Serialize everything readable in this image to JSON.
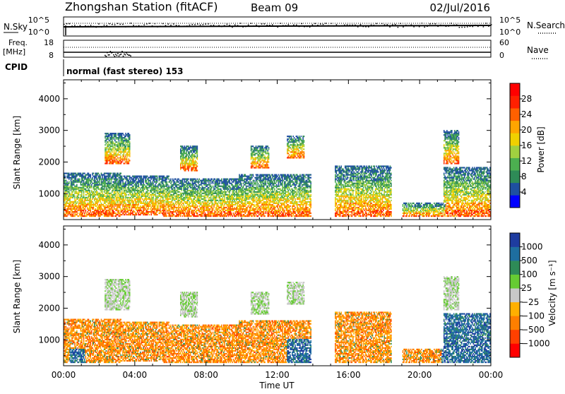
{
  "header": {
    "station": "Zhongshan Station (fitACF)",
    "beam": "Beam 09",
    "date": "02/Jul/2016"
  },
  "sky_panel": {
    "left_label": "N.Sky",
    "left_ticks": [
      "10^5",
      "10^0"
    ],
    "right_label": "N.Search",
    "right_ticks": [
      "10^5",
      "10^0"
    ]
  },
  "freq_panel": {
    "left_label_1": "Freq.",
    "left_label_2": "[MHz]",
    "left_ticks": [
      "18",
      "8"
    ],
    "right_label": "Nave",
    "right_ticks": [
      "60",
      "0"
    ]
  },
  "cpid": {
    "label": "CPID",
    "mode": "normal (fast stereo) 153"
  },
  "colors": {
    "power_scale": [
      "#0000ff",
      "#1e50a0",
      "#2e8b57",
      "#4caf50",
      "#a0d040",
      "#f0d000",
      "#ffa500",
      "#ff6000",
      "#ff2000",
      "#ff0000"
    ],
    "velocity_scale": [
      "#ff0000",
      "#ff4000",
      "#ff7f00",
      "#ffb000",
      "#c8c8c8",
      "#66cc33",
      "#2e8b57",
      "#1e6ea0",
      "#1e3ca0"
    ]
  },
  "chart_data": [
    {
      "type": "heatmap",
      "name": "power",
      "xlabel": "",
      "ylabel": "Slant Range [km]",
      "x_ticks": [
        "00:00",
        "04:00",
        "08:00",
        "12:00",
        "16:00",
        "20:00",
        "00:00"
      ],
      "xlim_hours": [
        0,
        24
      ],
      "ylim": [
        180,
        4600
      ],
      "y_ticks": [
        1000,
        2000,
        3000,
        4000
      ],
      "colorbar": {
        "label": "Power [dB]",
        "ticks": [
          "28",
          "24",
          "20",
          "16",
          "12",
          "8",
          "4"
        ],
        "range": [
          0,
          30
        ]
      },
      "echo_regions": [
        {
          "t0": 0.0,
          "t1": 3.3,
          "r0": 250,
          "r1": 1650
        },
        {
          "t0": 3.2,
          "t1": 5.9,
          "r0": 300,
          "r1": 1550
        },
        {
          "t0": 5.6,
          "t1": 10.3,
          "r0": 250,
          "r1": 1450
        },
        {
          "t0": 9.8,
          "t1": 13.9,
          "r0": 250,
          "r1": 1600
        },
        {
          "t0": 15.2,
          "t1": 18.4,
          "r0": 250,
          "r1": 1850
        },
        {
          "t0": 19.0,
          "t1": 21.4,
          "r0": 250,
          "r1": 700
        },
        {
          "t0": 21.3,
          "t1": 24.0,
          "r0": 250,
          "r1": 1800
        },
        {
          "t0": 2.3,
          "t1": 3.7,
          "r0": 1900,
          "r1": 2900
        },
        {
          "t0": 6.5,
          "t1": 7.5,
          "r0": 1700,
          "r1": 2500
        },
        {
          "t0": 10.5,
          "t1": 11.5,
          "r0": 1800,
          "r1": 2500
        },
        {
          "t0": 12.5,
          "t1": 13.5,
          "r0": 2100,
          "r1": 2800
        },
        {
          "t0": 21.3,
          "t1": 22.2,
          "r0": 1900,
          "r1": 3000
        }
      ]
    },
    {
      "type": "heatmap",
      "name": "velocity",
      "xlabel": "Time UT",
      "ylabel": "Slant Range [km]",
      "x_ticks": [
        "00:00",
        "04:00",
        "08:00",
        "12:00",
        "16:00",
        "20:00",
        "00:00"
      ],
      "xlim_hours": [
        0,
        24
      ],
      "ylim": [
        180,
        4600
      ],
      "y_ticks": [
        1000,
        2000,
        3000,
        4000
      ],
      "colorbar": {
        "label": "Velocity [m s⁻¹]",
        "ticks": [
          "1000",
          "500",
          "100",
          "25",
          "−25",
          "−100",
          "−500",
          "−1000"
        ],
        "range": [
          -1000,
          1000
        ]
      },
      "echo_regions": [
        {
          "t0": 0.0,
          "t1": 3.3,
          "r0": 250,
          "r1": 1650
        },
        {
          "t0": 3.2,
          "t1": 5.9,
          "r0": 300,
          "r1": 1550
        },
        {
          "t0": 5.6,
          "t1": 10.3,
          "r0": 250,
          "r1": 1450
        },
        {
          "t0": 9.8,
          "t1": 13.9,
          "r0": 250,
          "r1": 1600
        },
        {
          "t0": 15.2,
          "t1": 18.4,
          "r0": 250,
          "r1": 1850
        },
        {
          "t0": 19.0,
          "t1": 21.4,
          "r0": 250,
          "r1": 700
        },
        {
          "t0": 21.3,
          "t1": 24.0,
          "r0": 250,
          "r1": 1800
        },
        {
          "t0": 2.3,
          "t1": 3.7,
          "r0": 1900,
          "r1": 2900
        },
        {
          "t0": 6.5,
          "t1": 7.5,
          "r0": 1700,
          "r1": 2500
        },
        {
          "t0": 10.5,
          "t1": 11.5,
          "r0": 1800,
          "r1": 2500
        },
        {
          "t0": 12.5,
          "t1": 13.5,
          "r0": 2100,
          "r1": 2800
        },
        {
          "t0": 21.3,
          "t1": 22.2,
          "r0": 1900,
          "r1": 3000
        }
      ]
    }
  ]
}
